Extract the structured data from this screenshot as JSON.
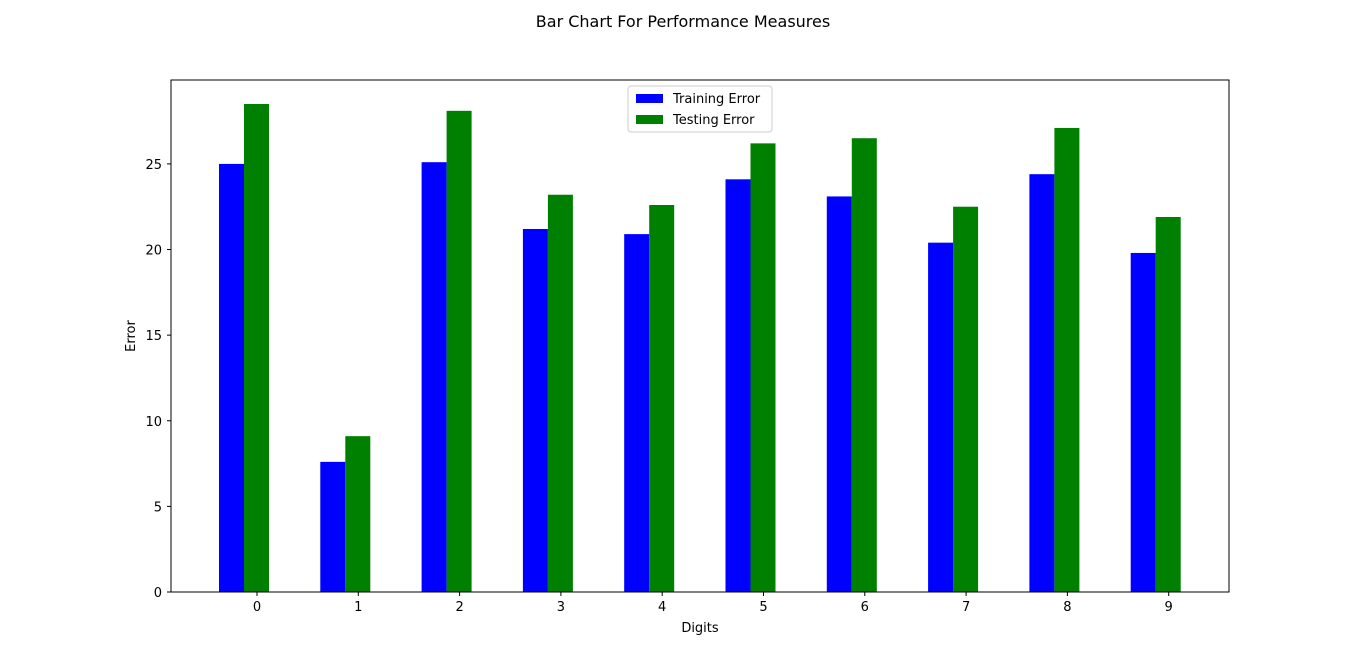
{
  "chart_data": {
    "type": "bar",
    "title": "Bar Chart For Performance Measures",
    "xlabel": "Digits",
    "ylabel": "Error",
    "categories": [
      "0",
      "1",
      "2",
      "3",
      "4",
      "5",
      "6",
      "7",
      "8",
      "9"
    ],
    "series": [
      {
        "name": "Training Error",
        "color": "#0000ff",
        "values": [
          25.0,
          7.6,
          25.1,
          21.2,
          20.9,
          24.1,
          23.1,
          20.4,
          24.4,
          19.8
        ]
      },
      {
        "name": "Testing Error",
        "color": "#008000",
        "values": [
          28.5,
          9.1,
          28.1,
          23.2,
          22.6,
          26.2,
          26.5,
          22.5,
          27.1,
          21.9
        ]
      }
    ],
    "ylim": [
      0,
      29.9
    ],
    "yticks": [
      0,
      5,
      10,
      15,
      20,
      25
    ],
    "legend": "upper-center",
    "grid": false
  }
}
